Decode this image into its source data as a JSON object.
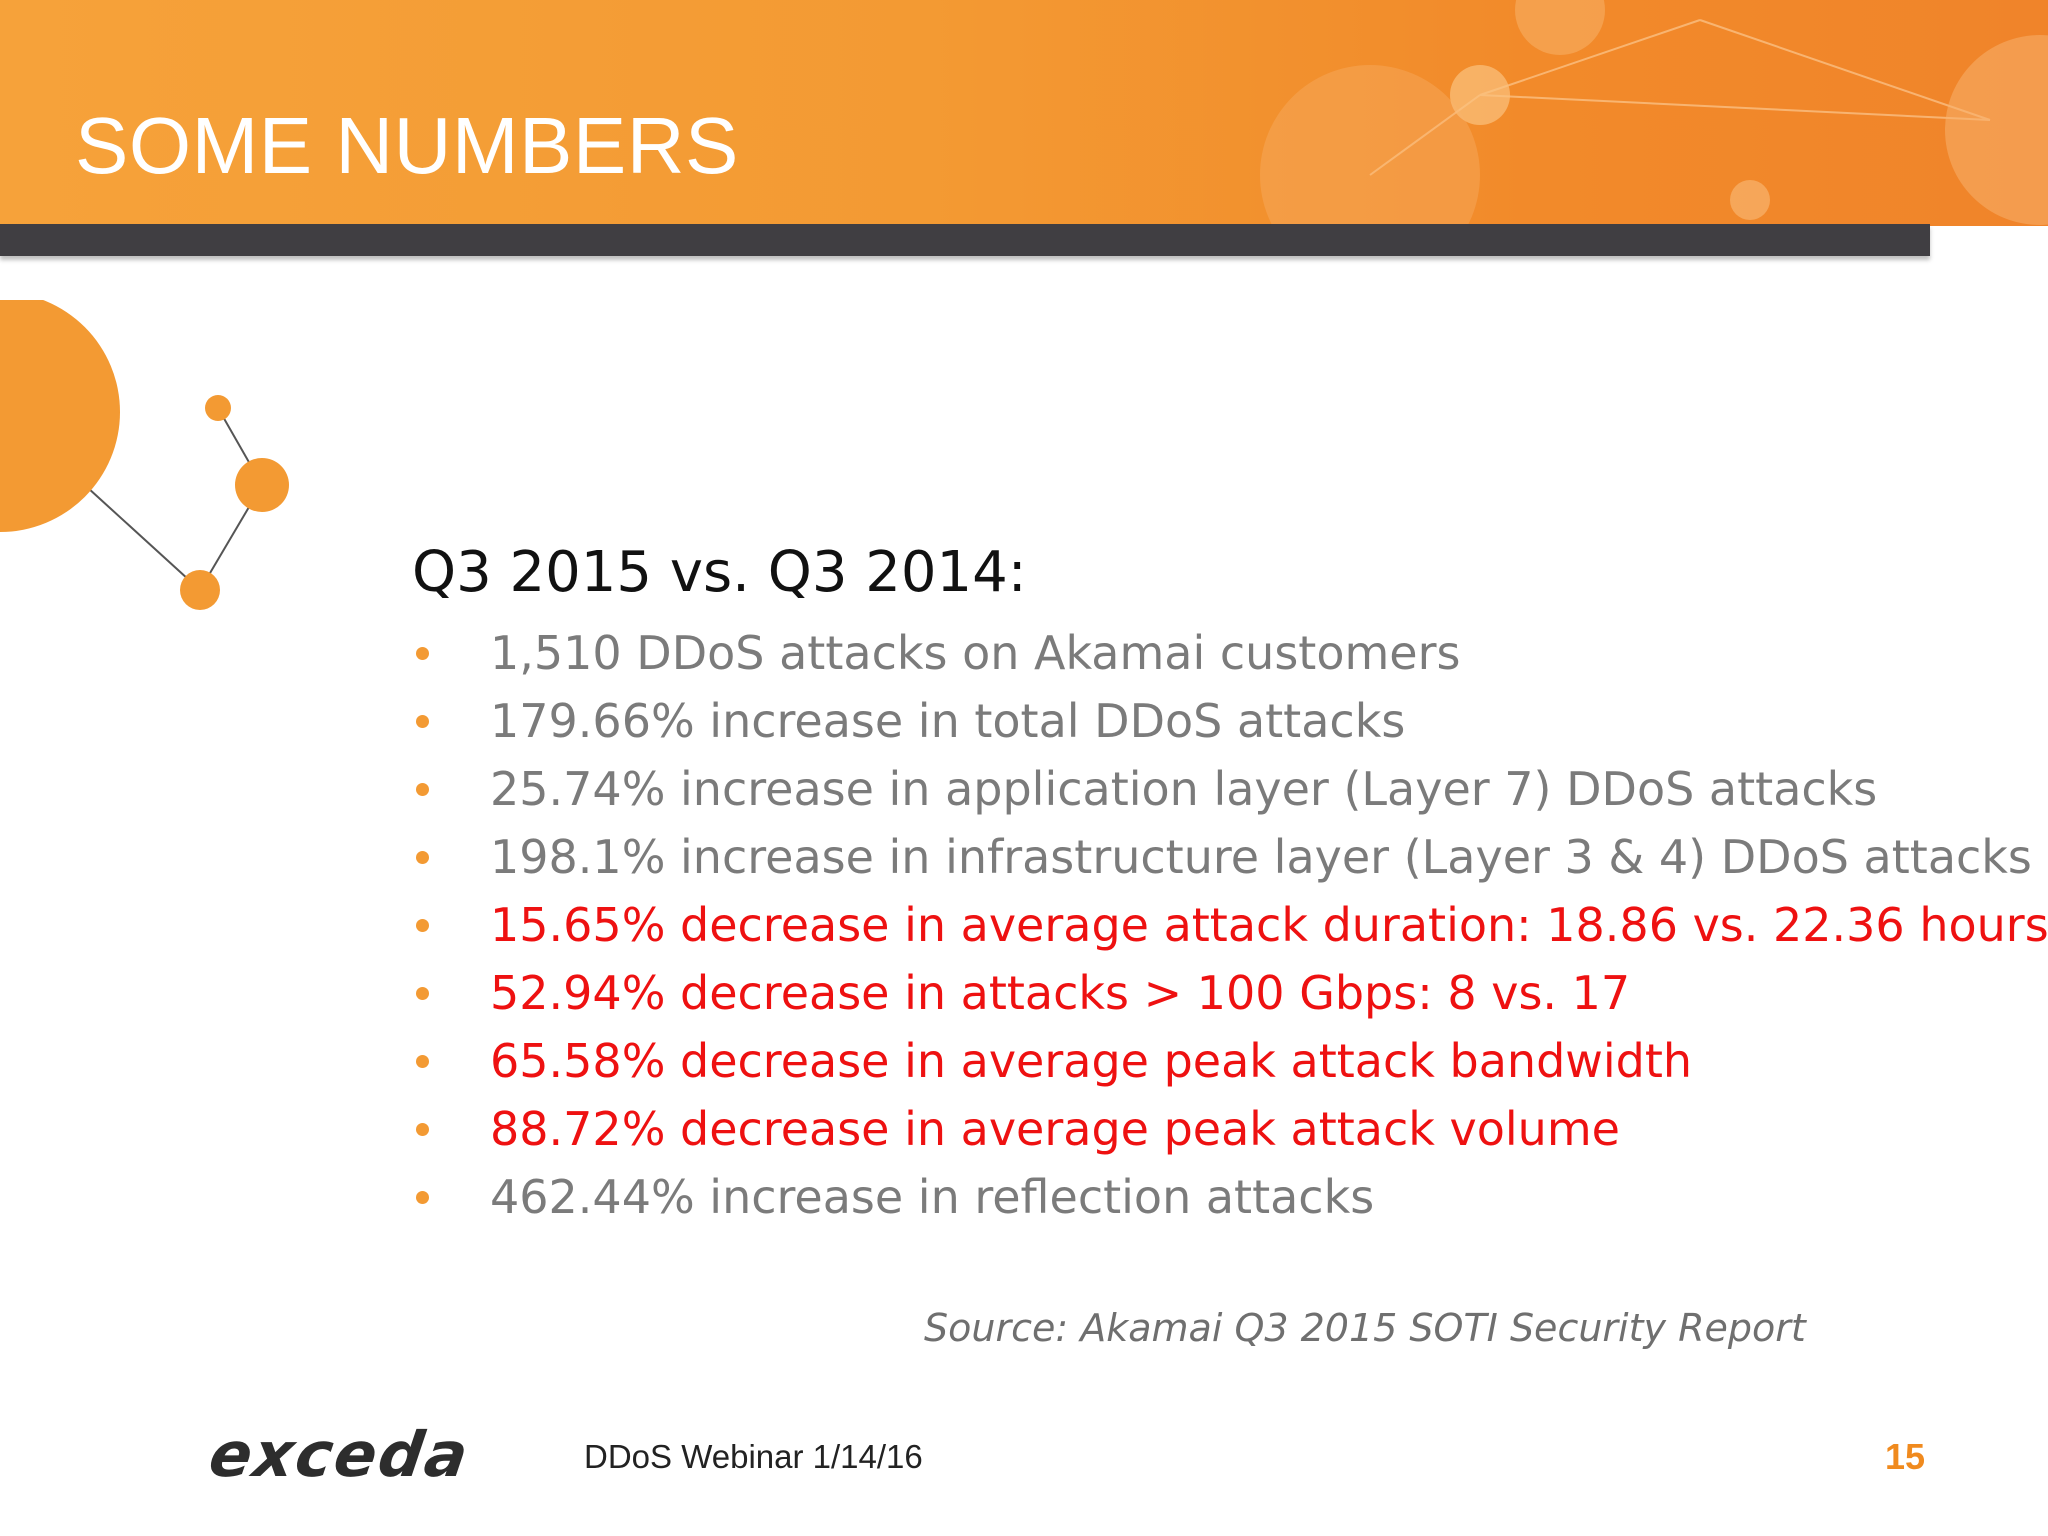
{
  "slide": {
    "title": "SOME NUMBERS",
    "heading": "Q3 2015 vs. Q3 2014:",
    "bullets": [
      {
        "text": "1,510 DDoS attacks on Akamai customers",
        "color": "#7b7b7b"
      },
      {
        "text": "179.66% increase in total DDoS attacks",
        "color": "#7b7b7b"
      },
      {
        "text": "25.74% increase in application layer (Layer 7) DDoS attacks",
        "color": "#7b7b7b"
      },
      {
        "text": "198.1% increase in infrastructure layer (Layer 3 & 4) DDoS attacks",
        "color": "#7b7b7b"
      },
      {
        "text": "15.65% decrease in average attack duration: 18.86 vs. 22.36 hours",
        "color": "#ee1111"
      },
      {
        "text": "52.94% decrease in attacks > 100 Gbps: 8 vs. 17",
        "color": "#ee1111"
      },
      {
        "text": "65.58% decrease in average peak attack bandwidth",
        "color": "#ee1111"
      },
      {
        "text": "88.72% decrease in average peak attack volume",
        "color": "#ee1111"
      },
      {
        "text": "462.44% increase in reflection attacks",
        "color": "#7b7b7b"
      }
    ],
    "source": "Source: Akamai Q3 2015 SOTI Security Report"
  },
  "footer": {
    "logo": "exceda",
    "event": "DDoS Webinar 1/14/16",
    "page_number": "15"
  },
  "colors": {
    "accent": "#f39a33",
    "dark_bar": "#403e42",
    "highlight": "#ee1111"
  }
}
